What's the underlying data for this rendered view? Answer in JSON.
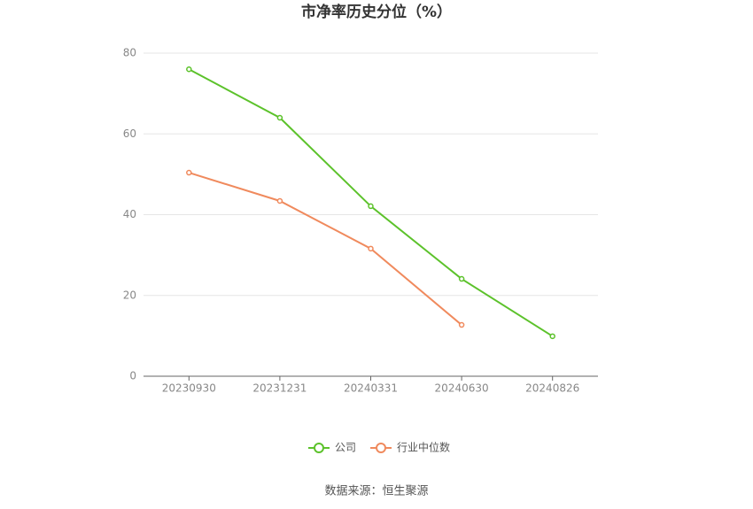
{
  "chart_data": {
    "type": "line",
    "title": "市净率历史分位（%）",
    "categories": [
      "20230930",
      "20231231",
      "20240331",
      "20240630",
      "20240826"
    ],
    "series": [
      {
        "name": "公司",
        "color": "#5cc22b",
        "values": [
          76.0,
          64.0,
          42.1,
          24.1,
          9.9
        ]
      },
      {
        "name": "行业中位数",
        "color": "#f08a5d",
        "values": [
          50.4,
          43.4,
          31.6,
          12.7,
          null
        ]
      }
    ],
    "ylim": [
      0,
      80
    ],
    "yticks": [
      0,
      20,
      40,
      60,
      80
    ],
    "grid": true,
    "legend": "bottom",
    "source": "数据来源：恒生聚源"
  }
}
